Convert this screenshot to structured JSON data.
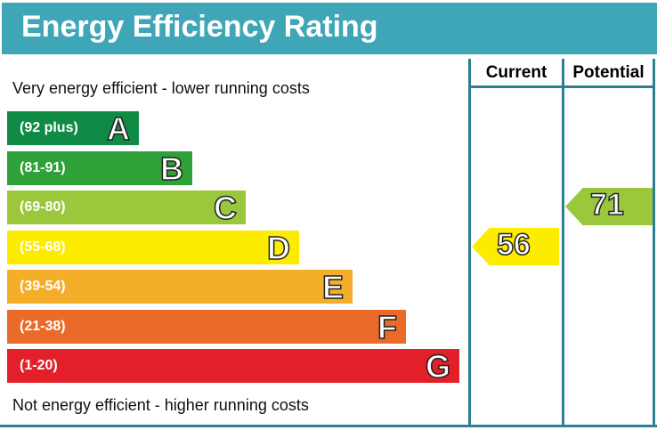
{
  "title": "Energy Efficiency Rating",
  "columns": {
    "current": "Current",
    "potential": "Potential"
  },
  "top_note": "Very energy efficient - lower running costs",
  "bottom_note": "Not energy efficient - higher running costs",
  "chart_data": {
    "type": "bar",
    "title": "Energy Efficiency Rating",
    "bands": [
      {
        "letter": "A",
        "range": "(92 plus)",
        "color": "#108b45"
      },
      {
        "letter": "B",
        "range": "(81-91)",
        "color": "#2ea239"
      },
      {
        "letter": "C",
        "range": "(69-80)",
        "color": "#9ac73c"
      },
      {
        "letter": "D",
        "range": "(55-68)",
        "color": "#fdeb00"
      },
      {
        "letter": "E",
        "range": "(39-54)",
        "color": "#f4ae2a"
      },
      {
        "letter": "F",
        "range": "(21-38)",
        "color": "#ea6a2a"
      },
      {
        "letter": "G",
        "range": "(1-20)",
        "color": "#e3202a"
      }
    ],
    "current": {
      "value": "56",
      "band": "D",
      "color": "#fdeb00"
    },
    "potential": {
      "value": "71",
      "band": "C",
      "color": "#9ac73c"
    }
  }
}
